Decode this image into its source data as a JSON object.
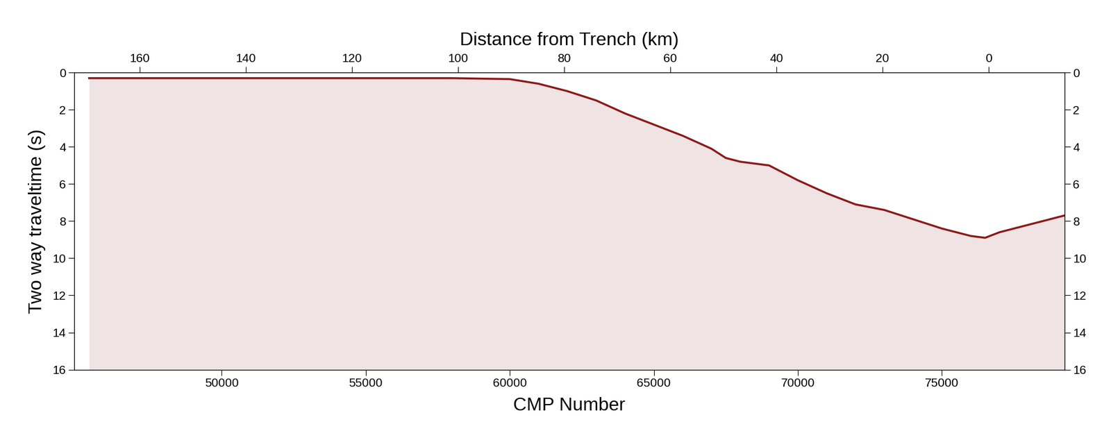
{
  "chart_data": {
    "type": "line",
    "x_label": "CMP Number",
    "y_label": "Two way traveltime (s)",
    "x2_label": "Distance from Trench (km)",
    "color": "#8b1a1a",
    "xlim": [
      44890,
      79250
    ],
    "xticks": [
      50000,
      55000,
      60000,
      65000,
      70000,
      75000
    ],
    "ylim": [
      16,
      0
    ],
    "yticks": [
      0,
      2,
      4,
      6,
      8,
      10,
      12,
      14,
      16
    ],
    "x2lim": [
      172.3,
      -14.3
    ],
    "x2ticks": [
      160,
      140,
      120,
      100,
      80,
      60,
      40,
      20,
      0
    ],
    "y2lim": [
      16,
      0
    ],
    "y2ticks": [
      0,
      2,
      4,
      6,
      8,
      10,
      12,
      14,
      16
    ],
    "x": [
      45400,
      50000,
      55000,
      58000,
      60000,
      61000,
      62000,
      63000,
      64000,
      65000,
      66000,
      67000,
      67500,
      68000,
      69000,
      70000,
      71000,
      72000,
      73000,
      74000,
      75000,
      76000,
      76500,
      77000,
      78000,
      79250
    ],
    "values": [
      0.3,
      0.3,
      0.3,
      0.3,
      0.35,
      0.6,
      1.0,
      1.5,
      2.2,
      2.8,
      3.4,
      4.1,
      4.6,
      4.8,
      5.0,
      5.8,
      6.5,
      7.1,
      7.4,
      7.9,
      8.4,
      8.8,
      8.9,
      8.6,
      8.2,
      7.7
    ]
  }
}
